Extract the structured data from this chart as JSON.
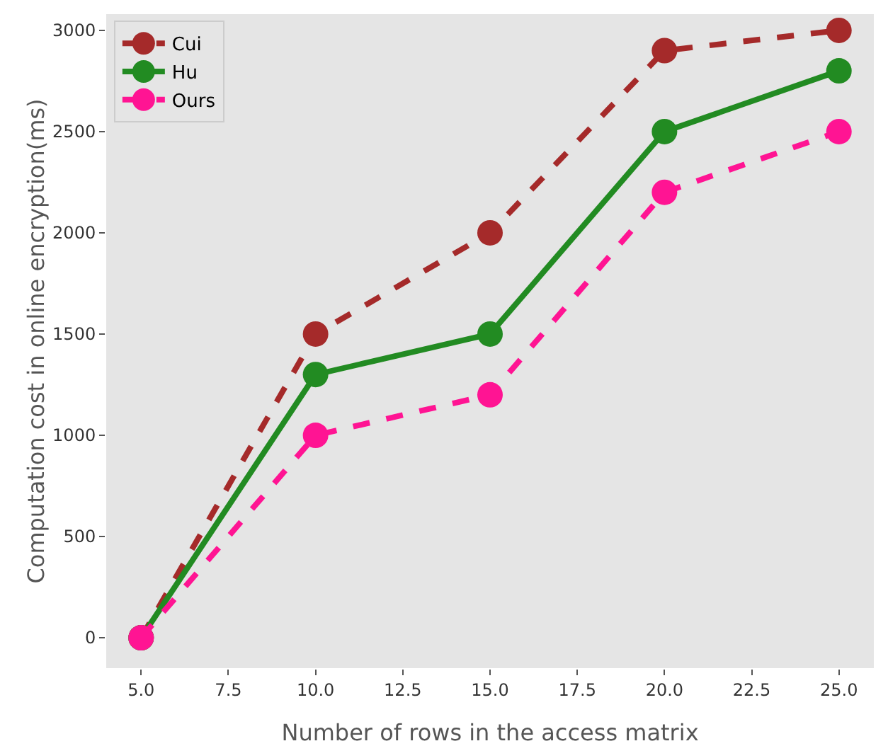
{
  "chart_data": {
    "type": "line",
    "xlabel": "Number of rows in the access matrix",
    "ylabel": "Computation cost in online encryption(ms)",
    "x": [
      5,
      10,
      15,
      20,
      25
    ],
    "series": [
      {
        "name": "Cui",
        "color": "#a52a2a",
        "line_style": "dashed",
        "values": [
          0,
          1500,
          2000,
          2900,
          3000
        ]
      },
      {
        "name": "Hu",
        "color": "#228b22",
        "line_style": "solid",
        "values": [
          0,
          1300,
          1500,
          2500,
          2800
        ]
      },
      {
        "name": "Ours",
        "color": "#ff1493",
        "line_style": "dashed",
        "values": [
          0,
          1000,
          1200,
          2200,
          2500
        ]
      }
    ],
    "xlim": [
      4,
      26
    ],
    "xticks": [
      {
        "value": 5,
        "label": "5.0"
      },
      {
        "value": 7.5,
        "label": "7.5"
      },
      {
        "value": 10,
        "label": "10.0"
      },
      {
        "value": 12.5,
        "label": "12.5"
      },
      {
        "value": 15,
        "label": "15.0"
      },
      {
        "value": 17.5,
        "label": "17.5"
      },
      {
        "value": 20,
        "label": "20.0"
      },
      {
        "value": 22.5,
        "label": "22.5"
      },
      {
        "value": 25,
        "label": "25.0"
      }
    ],
    "ylim": [
      -150,
      3080
    ],
    "yticks": [
      0,
      500,
      1000,
      1500,
      2000,
      2500,
      3000
    ],
    "grid": false,
    "legend": "top left",
    "marker": "circle"
  }
}
